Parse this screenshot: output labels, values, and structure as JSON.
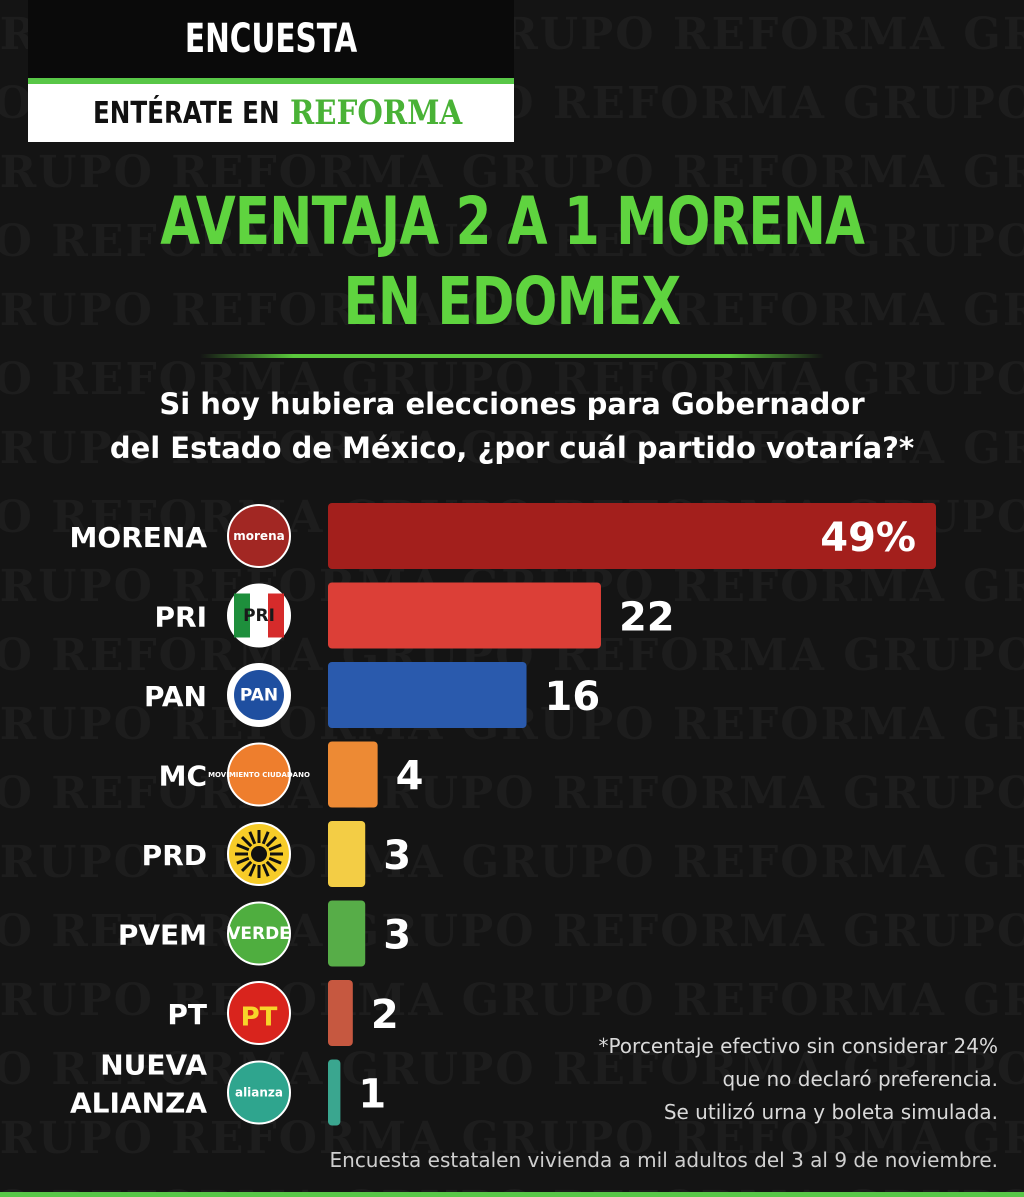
{
  "header": {
    "title": "ENCUESTA",
    "subtitle_prefix": "ENTÉRATE EN",
    "subtitle_brand": "REFORMA"
  },
  "watermark_text": "GRUPO REFORMA",
  "headline": {
    "line1": "AVENTAJA 2 A 1 MORENA",
    "line2": "EN EDOMEX"
  },
  "question": {
    "line1": "Si hoy hubiera elecciones para Gobernador",
    "line2": "del Estado de México, ¿por cuál partido votaría?*"
  },
  "chart_data": {
    "type": "bar",
    "orientation": "horizontal",
    "categories": [
      "MORENA",
      "PRI",
      "PAN",
      "MC",
      "PRD",
      "PVEM",
      "PT",
      "NUEVA ALIANZA"
    ],
    "values": [
      49,
      22,
      16,
      4,
      3,
      3,
      2,
      1
    ],
    "value_labels": [
      "49%",
      "22",
      "16",
      "4",
      "3",
      "3",
      "2",
      "1"
    ],
    "colors": [
      "#a31f1c",
      "#dc3f37",
      "#2a5aad",
      "#ed8a34",
      "#f3cd45",
      "#57ad48",
      "#c65840",
      "#3aa68f"
    ],
    "logos": [
      {
        "name": "morena-logo",
        "text": "morena",
        "bg": "#a22723",
        "fg": "#ffffff"
      },
      {
        "name": "pri-logo",
        "text": "PRI",
        "bg": "#ffffff",
        "fg": "#1a1a1a"
      },
      {
        "name": "pan-logo",
        "text": "PAN",
        "bg": "#ffffff",
        "fg": "#1f4fa0"
      },
      {
        "name": "mc-logo",
        "text": "MOVIMIENTO CIUDADANO",
        "bg": "#ee7e2d",
        "fg": "#ffffff"
      },
      {
        "name": "prd-logo",
        "text": "",
        "bg": "#f7cc28",
        "fg": "#111111"
      },
      {
        "name": "pvem-logo",
        "text": "VERDE",
        "bg": "#4fae3f",
        "fg": "#ffffff"
      },
      {
        "name": "pt-logo",
        "text": "PT",
        "bg": "#d9241d",
        "fg": "#f7d52a"
      },
      {
        "name": "nueva-alianza-logo",
        "text": "alianza",
        "bg": "#2fa58e",
        "fg": "#ffffff"
      }
    ],
    "xlim": [
      0,
      49
    ],
    "grid": false,
    "legend": "none"
  },
  "footnote": {
    "line1": "*Porcentaje efectivo sin considerar 24%",
    "line2": "que no declaró preferencia.",
    "line3": "Se utilizó urna y boleta simulada."
  },
  "source": "Encuesta estatalen vivienda a mil adultos del 3 al 9 de noviembre."
}
